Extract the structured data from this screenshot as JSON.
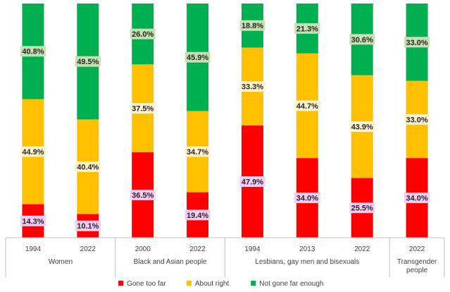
{
  "chart_data": {
    "type": "bar",
    "stacked": true,
    "normalized": true,
    "groups": [
      {
        "name": "Women",
        "categories": [
          "1994",
          "2022"
        ]
      },
      {
        "name": "Black and Asian people",
        "categories": [
          "2000",
          "2022"
        ]
      },
      {
        "name": "Lesbians, gay men and bisexuals",
        "categories": [
          "1994",
          "2013",
          "2022"
        ]
      },
      {
        "name": "Transgender people",
        "categories": [
          "2022"
        ]
      }
    ],
    "series": [
      {
        "name": "Gone too far",
        "color": "#ff0000",
        "label_bg": "#f4ccf4",
        "values": [
          14.3,
          10.1,
          36.5,
          19.4,
          47.9,
          34.0,
          25.5,
          34.0
        ],
        "labels": [
          "14.3%",
          "10.1%",
          "36.5%",
          "19.4%",
          "47.9%",
          "34.0%",
          "25.5%",
          "34.0%"
        ]
      },
      {
        "name": "About right",
        "color": "#ffc000",
        "label_bg": "#fff2cc",
        "values": [
          44.9,
          40.4,
          37.5,
          34.7,
          33.3,
          44.7,
          43.9,
          33.0
        ],
        "labels": [
          "44.9%",
          "40.4%",
          "37.5%",
          "34.7%",
          "33.3%",
          "44.7%",
          "43.9%",
          "33.0%"
        ]
      },
      {
        "name": "Not gone far enough",
        "color": "#00b050",
        "label_bg": "#c6e0b4",
        "values": [
          40.8,
          49.5,
          26.0,
          45.9,
          18.8,
          21.3,
          30.6,
          33.0
        ],
        "labels": [
          "40.8%",
          "49.5%",
          "26.0%",
          "45.9%",
          "18.8%",
          "21.3%",
          "30.6%",
          "33.0%"
        ]
      }
    ],
    "legend": {
      "position": "bottom"
    }
  }
}
